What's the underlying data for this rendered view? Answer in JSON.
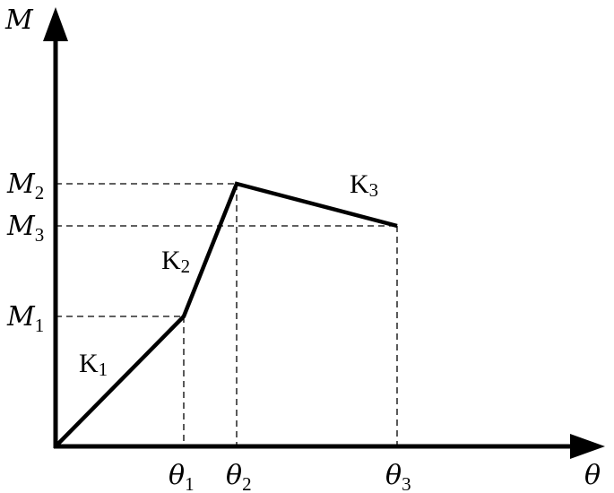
{
  "axes": {
    "y_label": "M",
    "x_label": "θ"
  },
  "moment_labels": [
    {
      "sym": "M",
      "sub": "2"
    },
    {
      "sym": "M",
      "sub": "3"
    },
    {
      "sym": "M",
      "sub": "1"
    }
  ],
  "rotation_labels": [
    {
      "sym": "θ",
      "sub": "1"
    },
    {
      "sym": "θ",
      "sub": "2"
    },
    {
      "sym": "θ",
      "sub": "3"
    }
  ],
  "stiffness_labels": [
    {
      "sym": "K",
      "sub": "1"
    },
    {
      "sym": "K",
      "sub": "2"
    },
    {
      "sym": "K",
      "sub": "3"
    }
  ]
}
